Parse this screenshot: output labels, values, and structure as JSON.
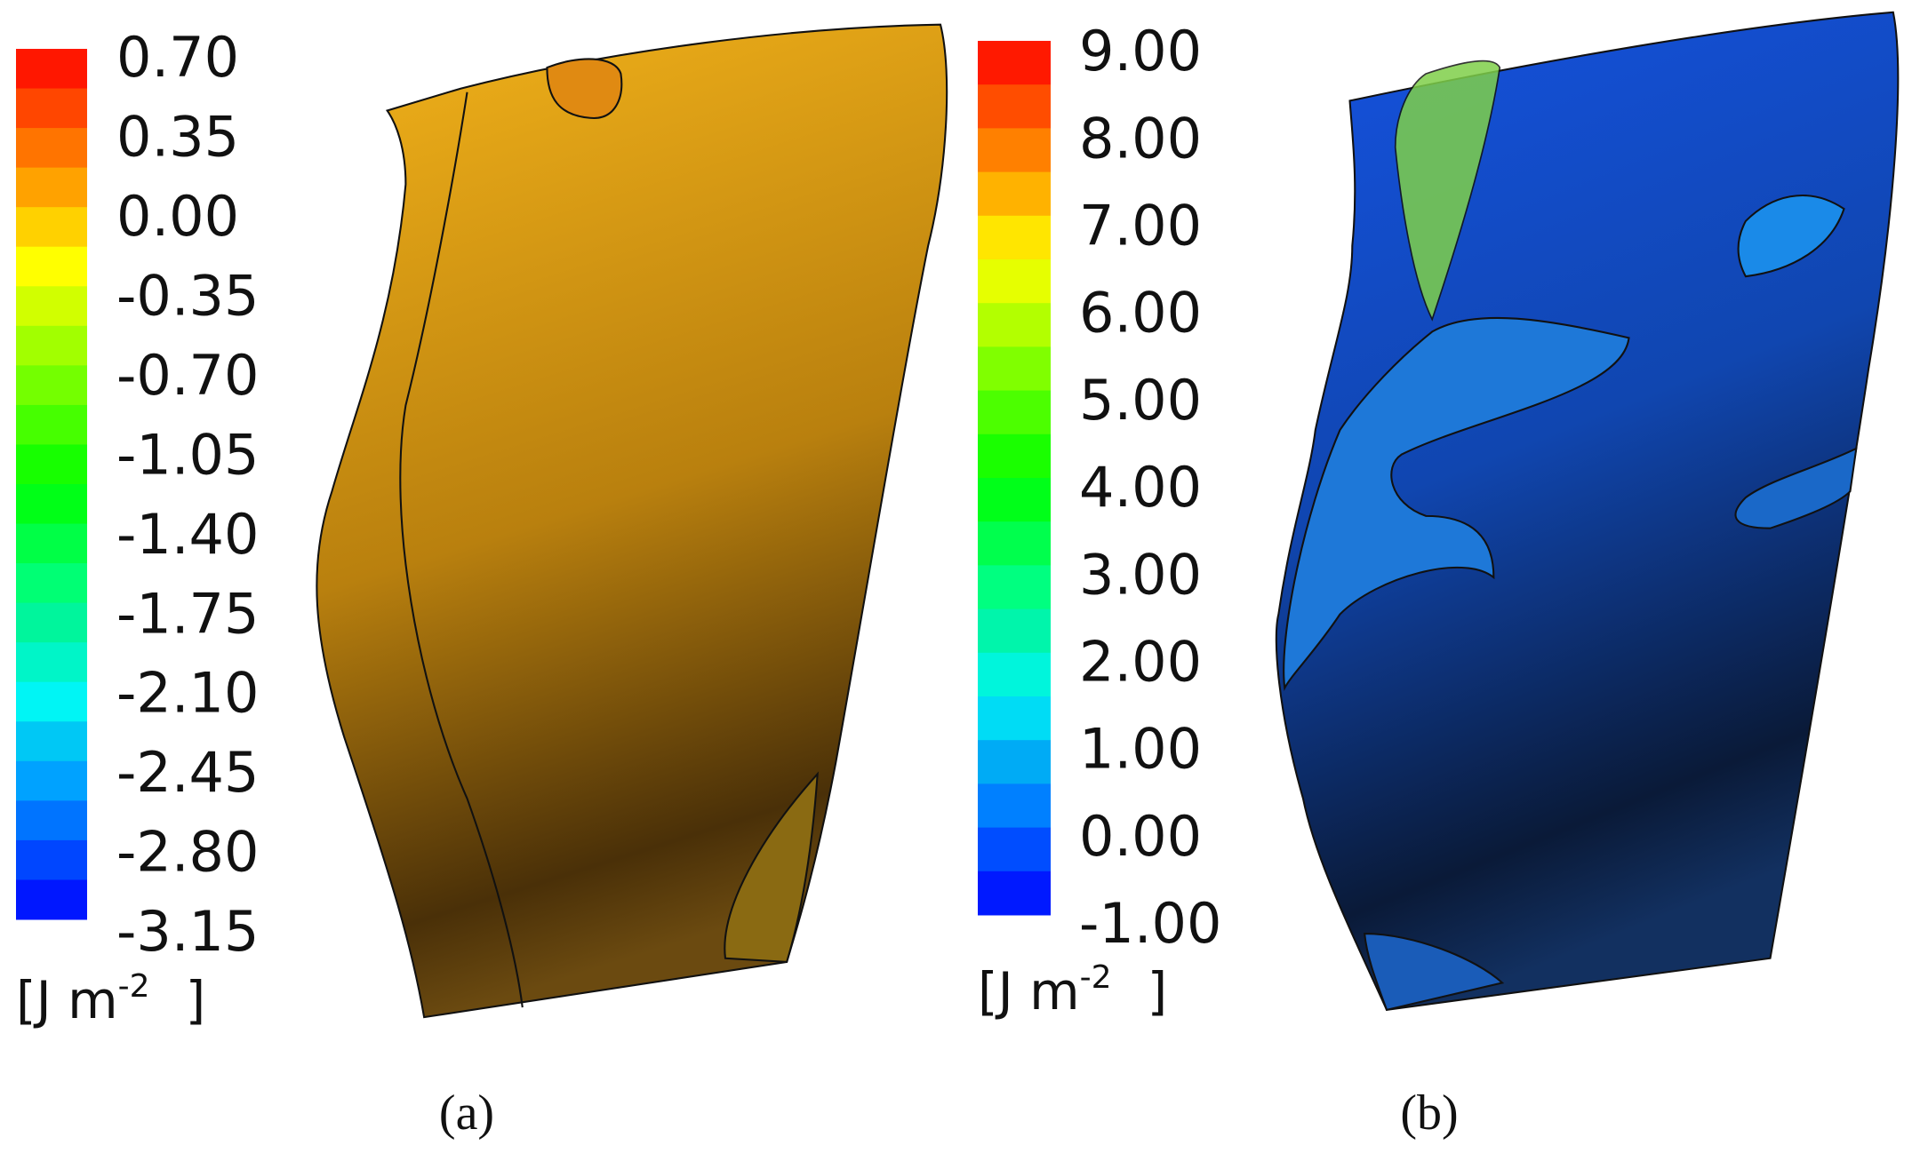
{
  "panels": [
    {
      "ticks": [
        "0.70",
        "0.35",
        "0.00",
        "-0.35",
        "-0.70",
        "-1.05",
        "-1.40",
        "-1.75",
        "-2.10",
        "-2.45",
        "-2.80",
        "-3.15"
      ],
      "unit": {
        "open": "[J m",
        "exponent": "-2",
        "close": "]"
      },
      "caption": "(a)"
    },
    {
      "ticks": [
        "9.00",
        "8.00",
        "7.00",
        "6.00",
        "5.00",
        "4.00",
        "3.00",
        "2.00",
        "1.00",
        "0.00",
        "-1.00"
      ],
      "unit": {
        "open": "[J m",
        "exponent": "-2",
        "close": "]"
      },
      "caption": "(b)"
    }
  ]
}
